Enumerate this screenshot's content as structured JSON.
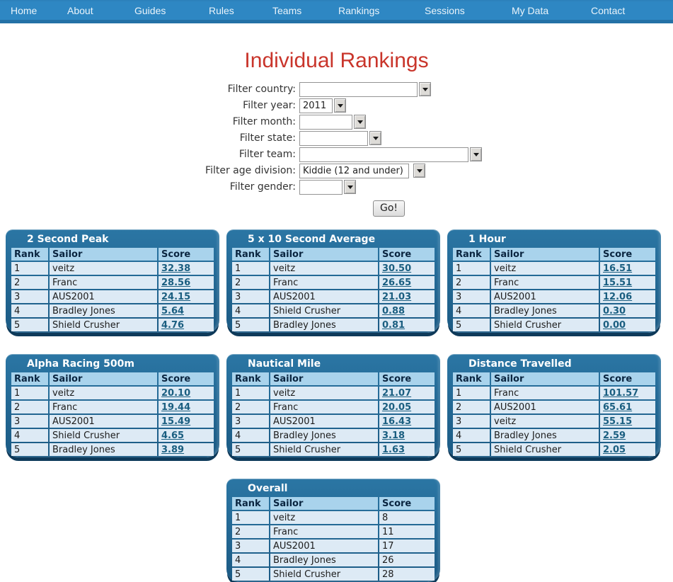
{
  "nav": {
    "items": [
      "Home",
      "About",
      "Guides",
      "Rules",
      "Teams",
      "Rankings",
      "Sessions",
      "My Data",
      "Contact"
    ]
  },
  "page": {
    "title": "Individual Rankings"
  },
  "filters": {
    "rows": [
      {
        "label": "Filter country:",
        "value": ""
      },
      {
        "label": "Filter year:",
        "value": "2011"
      },
      {
        "label": "Filter month:",
        "value": ""
      },
      {
        "label": "Filter state:",
        "value": ""
      },
      {
        "label": "Filter team:",
        "value": ""
      },
      {
        "label": "Filter age division:",
        "value": "Kiddie (12 and under)"
      },
      {
        "label": "Filter gender:",
        "value": ""
      }
    ],
    "go_label": "Go!"
  },
  "columns": {
    "rank": "Rank",
    "sailor": "Sailor",
    "score": "Score"
  },
  "tables": [
    {
      "title": "2 Second Peak",
      "rows": [
        {
          "rank": "1",
          "sailor": "veitz",
          "score": "32.38"
        },
        {
          "rank": "2",
          "sailor": "Franc",
          "score": "28.56"
        },
        {
          "rank": "3",
          "sailor": "AUS2001",
          "score": "24.15"
        },
        {
          "rank": "4",
          "sailor": "Bradley Jones",
          "score": "5.64"
        },
        {
          "rank": "5",
          "sailor": "Shield Crusher",
          "score": "4.76"
        }
      ]
    },
    {
      "title": "5 x 10 Second Average",
      "rows": [
        {
          "rank": "1",
          "sailor": "veitz",
          "score": "30.50"
        },
        {
          "rank": "2",
          "sailor": "Franc",
          "score": "26.65"
        },
        {
          "rank": "3",
          "sailor": "AUS2001",
          "score": "21.03"
        },
        {
          "rank": "4",
          "sailor": "Shield Crusher",
          "score": "0.88"
        },
        {
          "rank": "5",
          "sailor": "Bradley Jones",
          "score": "0.81"
        }
      ]
    },
    {
      "title": "1 Hour",
      "rows": [
        {
          "rank": "1",
          "sailor": "veitz",
          "score": "16.51"
        },
        {
          "rank": "2",
          "sailor": "Franc",
          "score": "15.51"
        },
        {
          "rank": "3",
          "sailor": "AUS2001",
          "score": "12.06"
        },
        {
          "rank": "4",
          "sailor": "Bradley Jones",
          "score": "0.30"
        },
        {
          "rank": "5",
          "sailor": "Shield Crusher",
          "score": "0.00"
        }
      ]
    },
    {
      "title": "Alpha Racing 500m",
      "rows": [
        {
          "rank": "1",
          "sailor": "veitz",
          "score": "20.10"
        },
        {
          "rank": "2",
          "sailor": "Franc",
          "score": "19.44"
        },
        {
          "rank": "3",
          "sailor": "AUS2001",
          "score": "15.49"
        },
        {
          "rank": "4",
          "sailor": "Shield Crusher",
          "score": "4.65"
        },
        {
          "rank": "5",
          "sailor": "Bradley Jones",
          "score": "3.89"
        }
      ]
    },
    {
      "title": "Nautical Mile",
      "rows": [
        {
          "rank": "1",
          "sailor": "veitz",
          "score": "21.07"
        },
        {
          "rank": "2",
          "sailor": "Franc",
          "score": "20.05"
        },
        {
          "rank": "3",
          "sailor": "AUS2001",
          "score": "16.43"
        },
        {
          "rank": "4",
          "sailor": "Bradley Jones",
          "score": "3.18"
        },
        {
          "rank": "5",
          "sailor": "Shield Crusher",
          "score": "1.63"
        }
      ]
    },
    {
      "title": "Distance Travelled",
      "rows": [
        {
          "rank": "1",
          "sailor": "Franc",
          "score": "101.57"
        },
        {
          "rank": "2",
          "sailor": "AUS2001",
          "score": "65.61"
        },
        {
          "rank": "3",
          "sailor": "veitz",
          "score": "55.15"
        },
        {
          "rank": "4",
          "sailor": "Bradley Jones",
          "score": "2.59"
        },
        {
          "rank": "5",
          "sailor": "Shield Crusher",
          "score": "2.05"
        }
      ]
    },
    {
      "title": "Overall",
      "rows": [
        {
          "rank": "1",
          "sailor": "veitz",
          "score": "8"
        },
        {
          "rank": "2",
          "sailor": "Franc",
          "score": "11"
        },
        {
          "rank": "3",
          "sailor": "AUS2001",
          "score": "17"
        },
        {
          "rank": "4",
          "sailor": "Bradley Jones",
          "score": "26"
        },
        {
          "rank": "5",
          "sailor": "Shield Crusher",
          "score": "28"
        }
      ]
    }
  ],
  "colors": {
    "nav_bar": "#2E87C3",
    "title": "#C9352B",
    "panel": "#1B5A84",
    "table_header": "#A9D3EC",
    "table_row": "#DDEAF5",
    "score_link": "#1A5E80"
  }
}
